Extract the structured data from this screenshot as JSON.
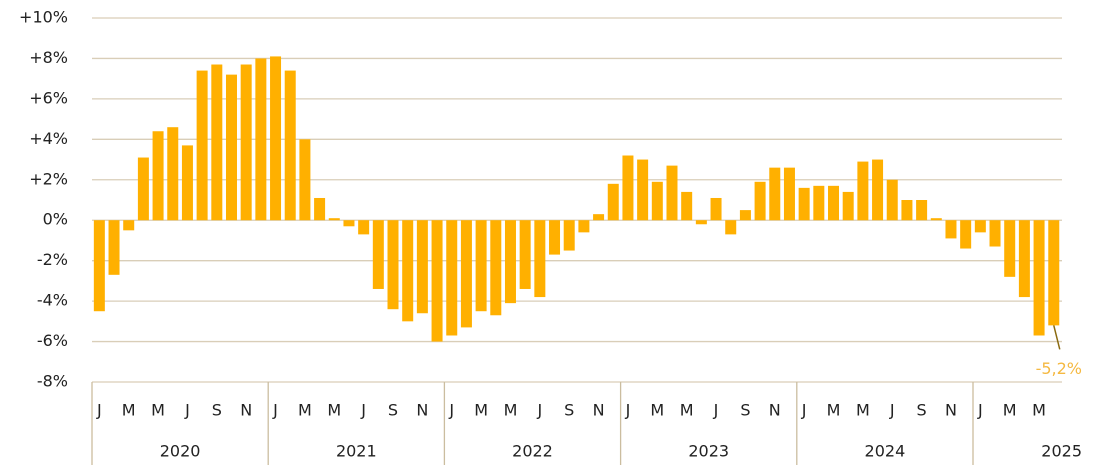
{
  "chart_data": {
    "type": "bar",
    "categories": [
      "J",
      null,
      "M",
      null,
      "M",
      null,
      "J",
      null,
      "S",
      null,
      "N",
      null,
      "J",
      null,
      "M",
      null,
      "M",
      null,
      "J",
      null,
      "S",
      null,
      "N",
      null,
      "J",
      null,
      "M",
      null,
      "M",
      null,
      "J",
      null,
      "S",
      null,
      "N",
      null,
      "J",
      null,
      "M",
      null,
      "M",
      null,
      "J",
      null,
      "S",
      null,
      "N",
      null,
      "J",
      null,
      "M",
      null,
      "M",
      null,
      "J",
      null,
      "S",
      null,
      "N",
      null,
      "J",
      null,
      "M",
      null,
      "M",
      null
    ],
    "years": [
      "2020",
      "2021",
      "2022",
      "2023",
      "2024",
      "2025"
    ],
    "values": [
      -4.5,
      -2.7,
      -0.5,
      3.1,
      4.4,
      4.6,
      3.7,
      7.4,
      7.7,
      7.2,
      7.7,
      8.0,
      8.1,
      7.4,
      4.0,
      1.1,
      0.1,
      -0.3,
      -0.7,
      -3.4,
      -4.4,
      -5.0,
      -4.6,
      -6.0,
      -5.7,
      -5.3,
      -4.5,
      -4.7,
      -4.1,
      -3.4,
      -3.8,
      -1.7,
      -1.5,
      -0.6,
      0.3,
      1.8,
      3.2,
      3.0,
      1.9,
      2.7,
      1.4,
      -0.2,
      1.1,
      -0.7,
      0.5,
      1.9,
      2.6,
      2.6,
      1.6,
      1.7,
      1.7,
      1.4,
      2.9,
      3.0,
      2.0,
      1.0,
      1.0,
      0.1,
      -0.9,
      -1.4,
      -0.6,
      -1.3,
      -2.8,
      -3.8,
      -5.7,
      -5.2
    ],
    "value_labels": [
      null,
      null,
      null,
      null,
      null,
      null,
      null,
      null,
      null,
      null,
      null,
      null,
      null,
      null,
      null,
      null,
      null,
      null,
      null,
      null,
      null,
      null,
      null,
      null,
      null,
      null,
      null,
      null,
      null,
      null,
      null,
      null,
      null,
      null,
      null,
      null,
      null,
      null,
      null,
      null,
      null,
      null,
      null,
      null,
      null,
      null,
      null,
      null,
      null,
      null,
      null,
      null,
      null,
      null,
      null,
      null,
      null,
      null,
      null,
      null,
      null,
      null,
      null,
      null,
      null,
      "-5,2%"
    ],
    "color": "#ffb000",
    "label_color": "#f5b942",
    "ylim": [
      -8,
      10
    ],
    "yticks": [
      {
        "value": -8,
        "label": "-8%"
      },
      {
        "value": -6,
        "label": "-6%"
      },
      {
        "value": -4,
        "label": "-4%"
      },
      {
        "value": -2,
        "label": "-2%"
      },
      {
        "value": 0,
        "label": "0%"
      },
      {
        "value": 2,
        "label": "+2%"
      },
      {
        "value": 4,
        "label": "+4%"
      },
      {
        "value": 6,
        "label": "+6%"
      },
      {
        "value": 8,
        "label": "+8%"
      },
      {
        "value": 10,
        "label": "+10%"
      }
    ],
    "grid": true
  }
}
